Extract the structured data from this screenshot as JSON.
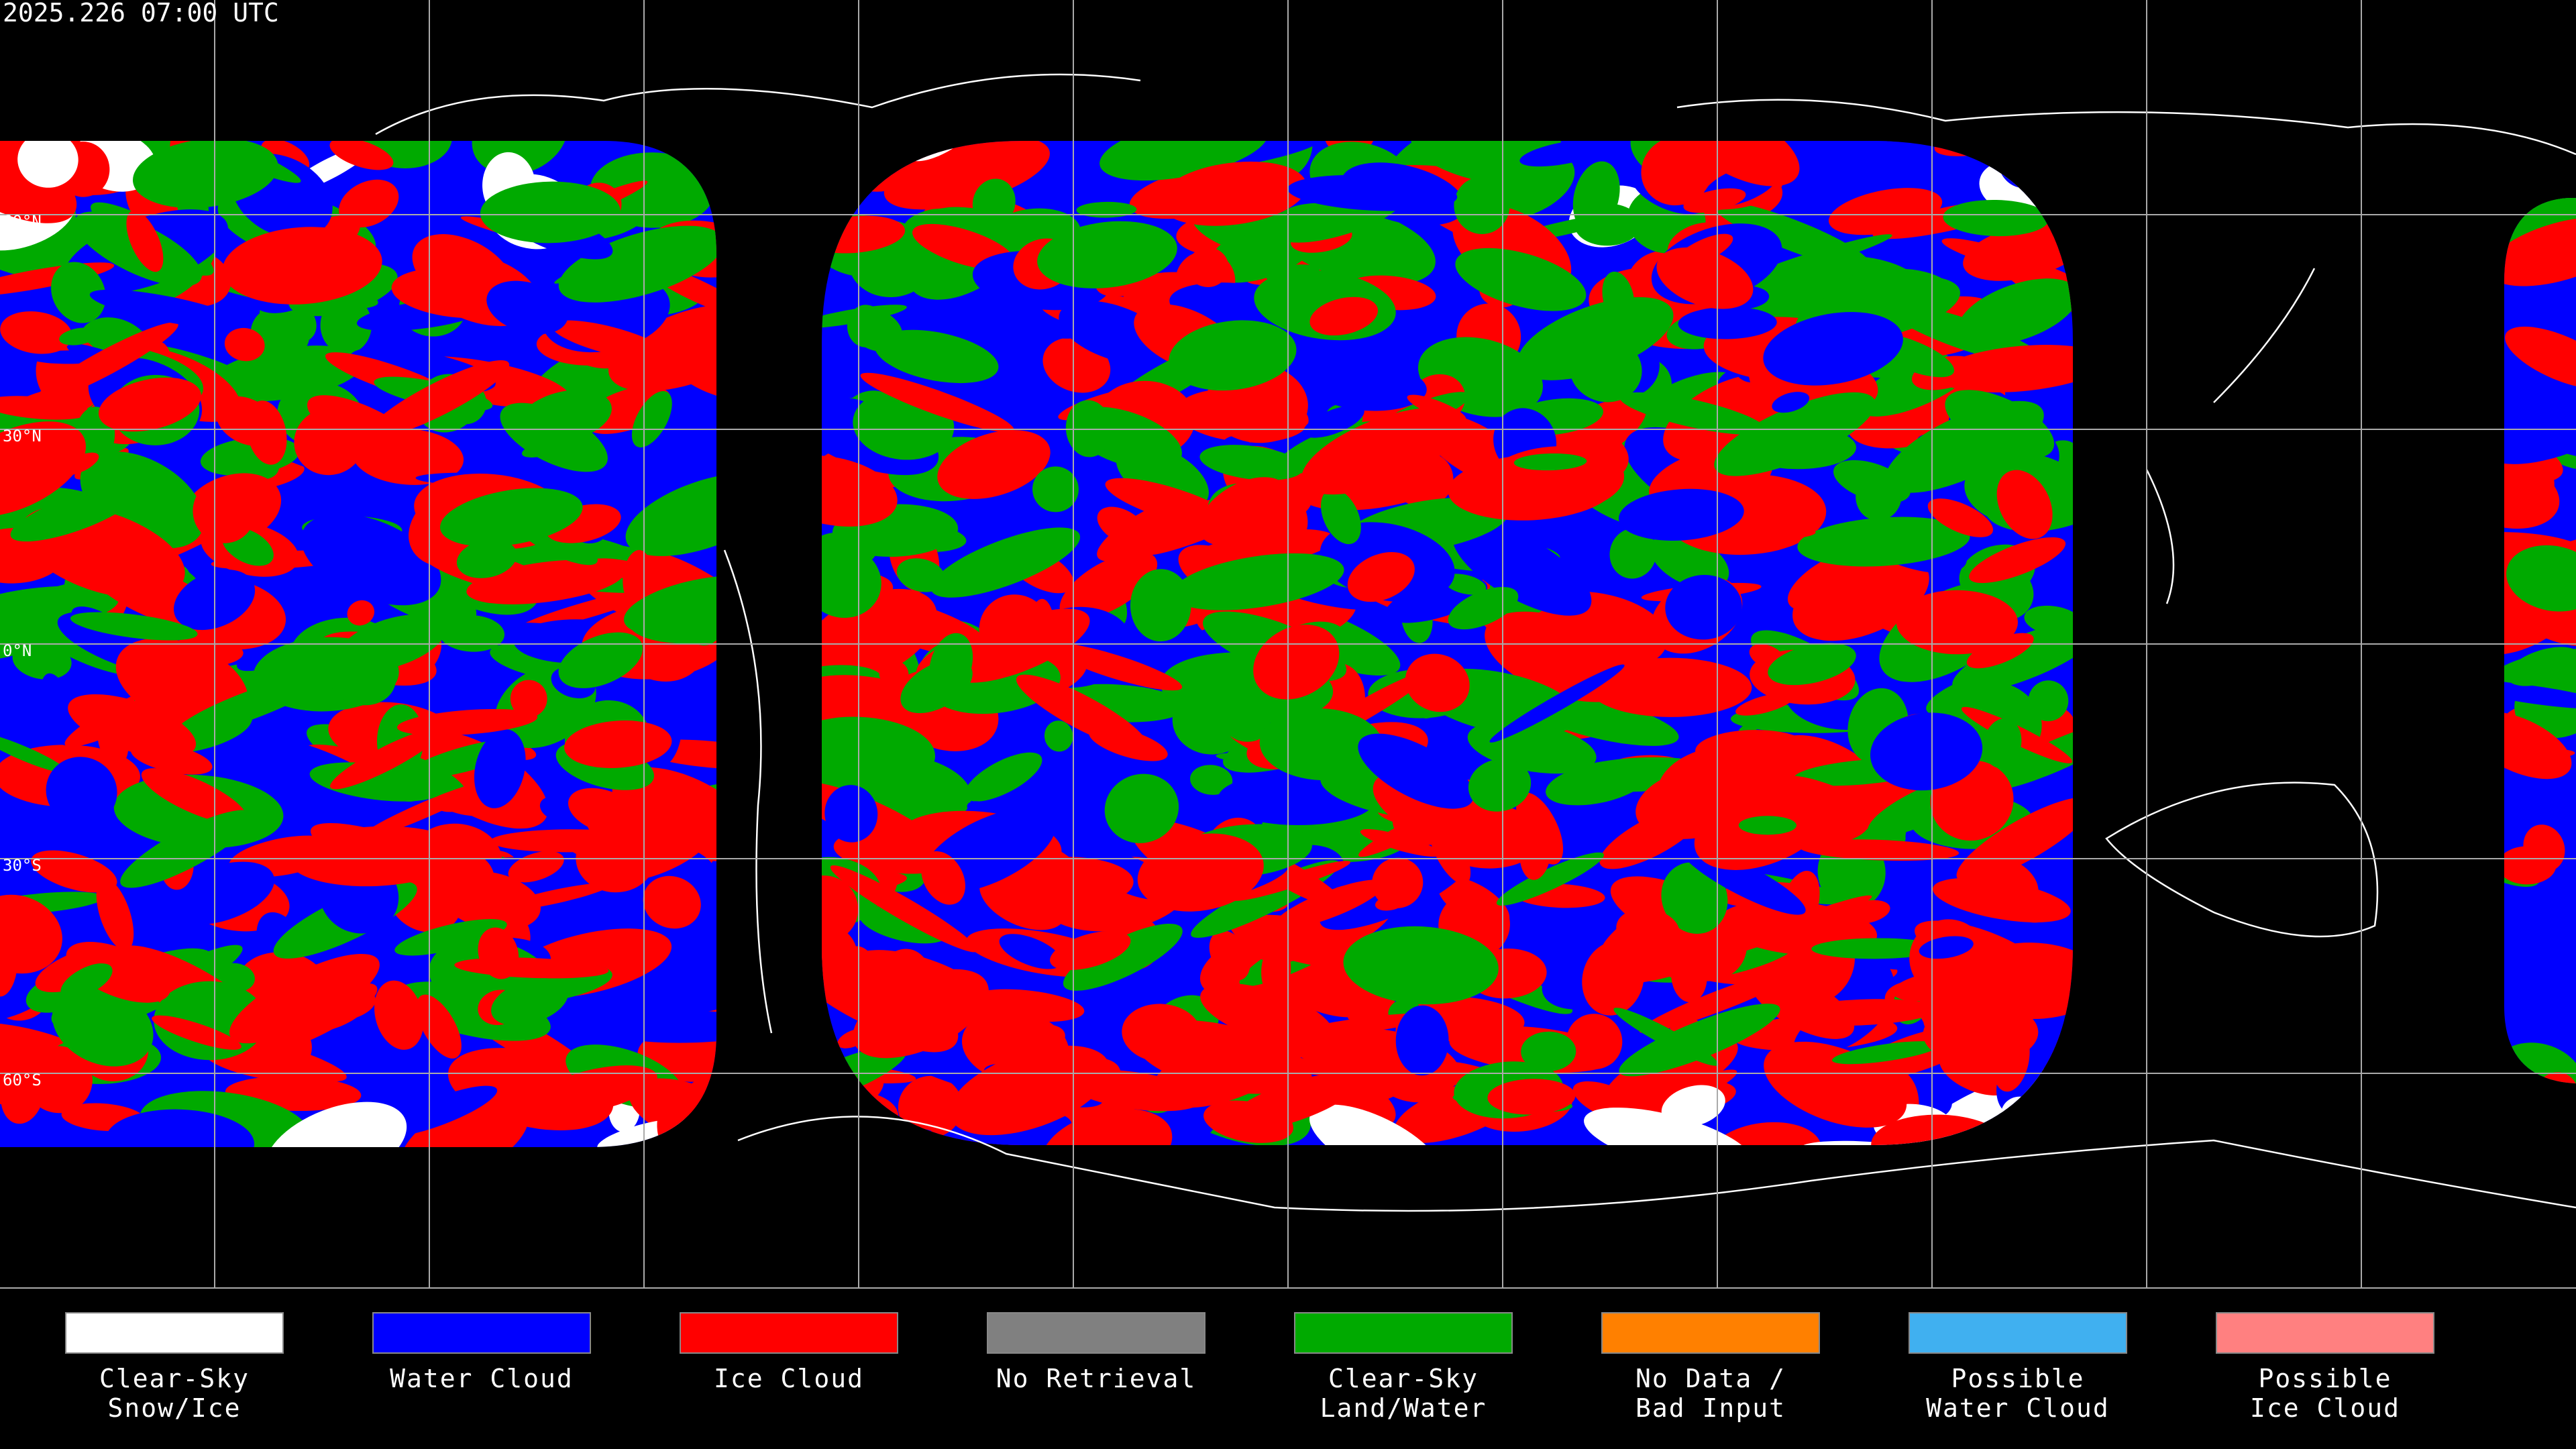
{
  "header": {
    "timestamp": "2025.226 07:00 UTC"
  },
  "map": {
    "lat_labels": [
      "60°N",
      "30°N",
      "0°N",
      "30°S",
      "60°S"
    ]
  },
  "legend": {
    "items": [
      {
        "label": [
          "Clear-Sky",
          "Snow/Ice"
        ],
        "color": "#ffffff"
      },
      {
        "label": [
          "Water Cloud"
        ],
        "color": "#0000ff"
      },
      {
        "label": [
          "Ice Cloud"
        ],
        "color": "#ff0000"
      },
      {
        "label": [
          "No Retrieval"
        ],
        "color": "#808080"
      },
      {
        "label": [
          "Clear-Sky",
          "Land/Water"
        ],
        "color": "#00aa00"
      },
      {
        "label": [
          "No Data /",
          "Bad Input"
        ],
        "color": "#ff8000"
      },
      {
        "label": [
          "Possible",
          "Water Cloud"
        ],
        "color": "#40b0f0"
      },
      {
        "label": [
          "Possible",
          "Ice Cloud"
        ],
        "color": "#ff8080"
      }
    ]
  }
}
